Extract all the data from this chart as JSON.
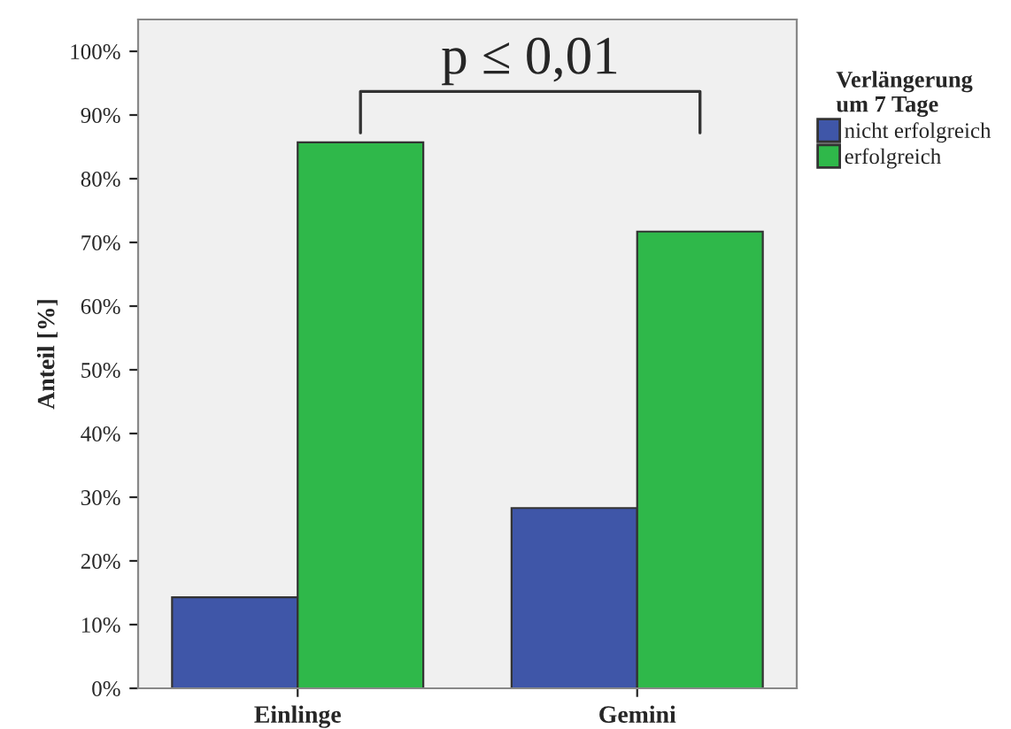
{
  "chart_data": {
    "type": "bar",
    "ylabel": "Anteil [%]",
    "legend_title": "Verlängerung\num 7 Tage",
    "categories": [
      "Einlinge",
      "Gemini"
    ],
    "series": [
      {
        "name": "nicht erfolgreich",
        "color": "#3f56a8",
        "values": [
          14.3,
          28.3
        ]
      },
      {
        "name": "erfolgreich",
        "color": "#2fb84a",
        "values": [
          85.7,
          71.7
        ]
      }
    ],
    "ylim": [
      0,
      105
    ],
    "yticks": [
      {
        "value": 0,
        "label": "0%"
      },
      {
        "value": 10,
        "label": "10%"
      },
      {
        "value": 20,
        "label": "20%"
      },
      {
        "value": 30,
        "label": "30%"
      },
      {
        "value": 40,
        "label": "40%"
      },
      {
        "value": 50,
        "label": "50%"
      },
      {
        "value": 60,
        "label": "60%"
      },
      {
        "value": 70,
        "label": "70%"
      },
      {
        "value": 80,
        "label": "80%"
      },
      {
        "value": 90,
        "label": "90%"
      },
      {
        "value": 100,
        "label": "100%"
      }
    ],
    "annotations": [
      "p ≤ 0,01"
    ],
    "legend": "top right",
    "grid": false
  }
}
